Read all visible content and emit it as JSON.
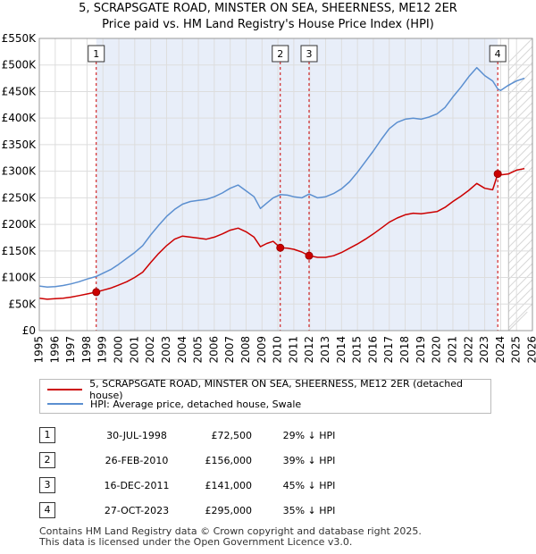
{
  "title_line1": "5, SCRAPSGATE ROAD, MINSTER ON SEA, SHEERNESS, ME12 2ER",
  "title_line2": "Price paid vs. HM Land Registry's House Price Index (HPI)",
  "colors": {
    "property": "#cc0000",
    "hpi": "#5b8fd0",
    "shade": "#e8eef9",
    "marker_line": "#cc0000",
    "grid": "#dddddd"
  },
  "chart_data": {
    "type": "line",
    "xlim": [
      1995,
      2026
    ],
    "ylim": [
      0,
      550000
    ],
    "x_ticks": [
      1995,
      1996,
      1997,
      1998,
      1999,
      2000,
      2001,
      2002,
      2003,
      2004,
      2005,
      2006,
      2007,
      2008,
      2009,
      2010,
      2011,
      2012,
      2013,
      2014,
      2015,
      2016,
      2017,
      2018,
      2019,
      2020,
      2021,
      2022,
      2023,
      2024,
      2025,
      2026
    ],
    "y_ticks": [
      0,
      50000,
      100000,
      150000,
      200000,
      250000,
      300000,
      350000,
      400000,
      450000,
      500000,
      550000
    ],
    "y_tick_labels": [
      "£0",
      "£50K",
      "£100K",
      "£150K",
      "£200K",
      "£250K",
      "£300K",
      "£350K",
      "£400K",
      "£450K",
      "£500K",
      "£550K"
    ],
    "shaded_from": 1998.58,
    "shaded_to": 2023.82,
    "future_start": 2024.5,
    "series": [
      {
        "name": "5, SCRAPSGATE ROAD, MINSTER ON SEA, SHEERNESS, ME12 2ER (detached house)",
        "color": "#cc0000",
        "points": [
          [
            1995.0,
            61000
          ],
          [
            1995.5,
            59000
          ],
          [
            1996.0,
            60000
          ],
          [
            1996.5,
            61000
          ],
          [
            1997.0,
            63000
          ],
          [
            1997.5,
            66000
          ],
          [
            1998.0,
            69000
          ],
          [
            1998.58,
            72500
          ],
          [
            1999.0,
            76000
          ],
          [
            1999.5,
            80000
          ],
          [
            2000.0,
            86000
          ],
          [
            2000.5,
            92000
          ],
          [
            2001.0,
            100000
          ],
          [
            2001.5,
            110000
          ],
          [
            2002.0,
            128000
          ],
          [
            2002.5,
            145000
          ],
          [
            2003.0,
            160000
          ],
          [
            2003.5,
            172000
          ],
          [
            2004.0,
            178000
          ],
          [
            2004.5,
            176000
          ],
          [
            2005.0,
            174000
          ],
          [
            2005.5,
            172000
          ],
          [
            2006.0,
            176000
          ],
          [
            2006.5,
            182000
          ],
          [
            2007.0,
            189000
          ],
          [
            2007.5,
            193000
          ],
          [
            2008.0,
            186000
          ],
          [
            2008.5,
            176000
          ],
          [
            2008.9,
            158000
          ],
          [
            2009.3,
            164000
          ],
          [
            2009.7,
            168000
          ],
          [
            2010.15,
            156000
          ],
          [
            2010.6,
            155000
          ],
          [
            2011.0,
            153000
          ],
          [
            2011.5,
            148000
          ],
          [
            2011.96,
            141000
          ],
          [
            2012.5,
            138000
          ],
          [
            2013.0,
            138000
          ],
          [
            2013.5,
            141000
          ],
          [
            2014.0,
            147000
          ],
          [
            2014.5,
            155000
          ],
          [
            2015.0,
            163000
          ],
          [
            2015.5,
            172000
          ],
          [
            2016.0,
            182000
          ],
          [
            2016.5,
            193000
          ],
          [
            2017.0,
            204000
          ],
          [
            2017.5,
            212000
          ],
          [
            2018.0,
            218000
          ],
          [
            2018.5,
            221000
          ],
          [
            2019.0,
            220000
          ],
          [
            2019.5,
            222000
          ],
          [
            2020.0,
            224000
          ],
          [
            2020.5,
            232000
          ],
          [
            2021.0,
            243000
          ],
          [
            2021.5,
            253000
          ],
          [
            2022.0,
            264000
          ],
          [
            2022.5,
            277000
          ],
          [
            2023.0,
            268000
          ],
          [
            2023.5,
            265000
          ],
          [
            2023.82,
            295000
          ],
          [
            2024.0,
            293000
          ],
          [
            2024.5,
            295000
          ],
          [
            2025.0,
            302000
          ],
          [
            2025.5,
            305000
          ]
        ]
      },
      {
        "name": "HPI: Average price, detached house, Swale",
        "color": "#5b8fd0",
        "points": [
          [
            1995.0,
            84000
          ],
          [
            1995.5,
            82000
          ],
          [
            1996.0,
            83000
          ],
          [
            1996.5,
            85000
          ],
          [
            1997.0,
            88000
          ],
          [
            1997.5,
            92000
          ],
          [
            1998.0,
            97000
          ],
          [
            1998.58,
            102000
          ],
          [
            1999.0,
            108000
          ],
          [
            1999.5,
            115000
          ],
          [
            2000.0,
            125000
          ],
          [
            2000.5,
            136000
          ],
          [
            2001.0,
            147000
          ],
          [
            2001.5,
            160000
          ],
          [
            2002.0,
            180000
          ],
          [
            2002.5,
            198000
          ],
          [
            2003.0,
            215000
          ],
          [
            2003.5,
            228000
          ],
          [
            2004.0,
            238000
          ],
          [
            2004.5,
            243000
          ],
          [
            2005.0,
            245000
          ],
          [
            2005.5,
            247000
          ],
          [
            2006.0,
            252000
          ],
          [
            2006.5,
            259000
          ],
          [
            2007.0,
            268000
          ],
          [
            2007.5,
            274000
          ],
          [
            2008.0,
            263000
          ],
          [
            2008.5,
            252000
          ],
          [
            2008.9,
            230000
          ],
          [
            2009.3,
            240000
          ],
          [
            2009.7,
            250000
          ],
          [
            2010.15,
            256000
          ],
          [
            2010.6,
            255000
          ],
          [
            2011.0,
            252000
          ],
          [
            2011.5,
            250000
          ],
          [
            2011.96,
            257000
          ],
          [
            2012.5,
            250000
          ],
          [
            2013.0,
            252000
          ],
          [
            2013.5,
            258000
          ],
          [
            2014.0,
            267000
          ],
          [
            2014.5,
            280000
          ],
          [
            2015.0,
            298000
          ],
          [
            2015.5,
            318000
          ],
          [
            2016.0,
            338000
          ],
          [
            2016.5,
            360000
          ],
          [
            2017.0,
            380000
          ],
          [
            2017.5,
            392000
          ],
          [
            2018.0,
            398000
          ],
          [
            2018.5,
            400000
          ],
          [
            2019.0,
            398000
          ],
          [
            2019.5,
            402000
          ],
          [
            2020.0,
            408000
          ],
          [
            2020.5,
            420000
          ],
          [
            2021.0,
            440000
          ],
          [
            2021.5,
            458000
          ],
          [
            2022.0,
            478000
          ],
          [
            2022.5,
            495000
          ],
          [
            2023.0,
            480000
          ],
          [
            2023.5,
            470000
          ],
          [
            2023.82,
            455000
          ],
          [
            2024.0,
            452000
          ],
          [
            2024.5,
            462000
          ],
          [
            2025.0,
            470000
          ],
          [
            2025.5,
            475000
          ]
        ]
      }
    ],
    "sales": [
      {
        "num": "1",
        "x": 1998.58,
        "y": 72500
      },
      {
        "num": "2",
        "x": 2010.15,
        "y": 156000
      },
      {
        "num": "3",
        "x": 2011.96,
        "y": 141000
      },
      {
        "num": "4",
        "x": 2023.82,
        "y": 295000
      }
    ]
  },
  "legend": {
    "property_label": "5, SCRAPSGATE ROAD, MINSTER ON SEA, SHEERNESS, ME12 2ER (detached house)",
    "hpi_label": "HPI: Average price, detached house, Swale"
  },
  "transactions": [
    {
      "num": "1",
      "date": "30-JUL-1998",
      "price": "£72,500",
      "hpi": "29% ↓ HPI"
    },
    {
      "num": "2",
      "date": "26-FEB-2010",
      "price": "£156,000",
      "hpi": "39% ↓ HPI"
    },
    {
      "num": "3",
      "date": "16-DEC-2011",
      "price": "£141,000",
      "hpi": "45% ↓ HPI"
    },
    {
      "num": "4",
      "date": "27-OCT-2023",
      "price": "£295,000",
      "hpi": "35% ↓ HPI"
    }
  ],
  "footer": {
    "line1": "Contains HM Land Registry data © Crown copyright and database right 2025.",
    "line2": "This data is licensed under the Open Government Licence v3.0."
  }
}
